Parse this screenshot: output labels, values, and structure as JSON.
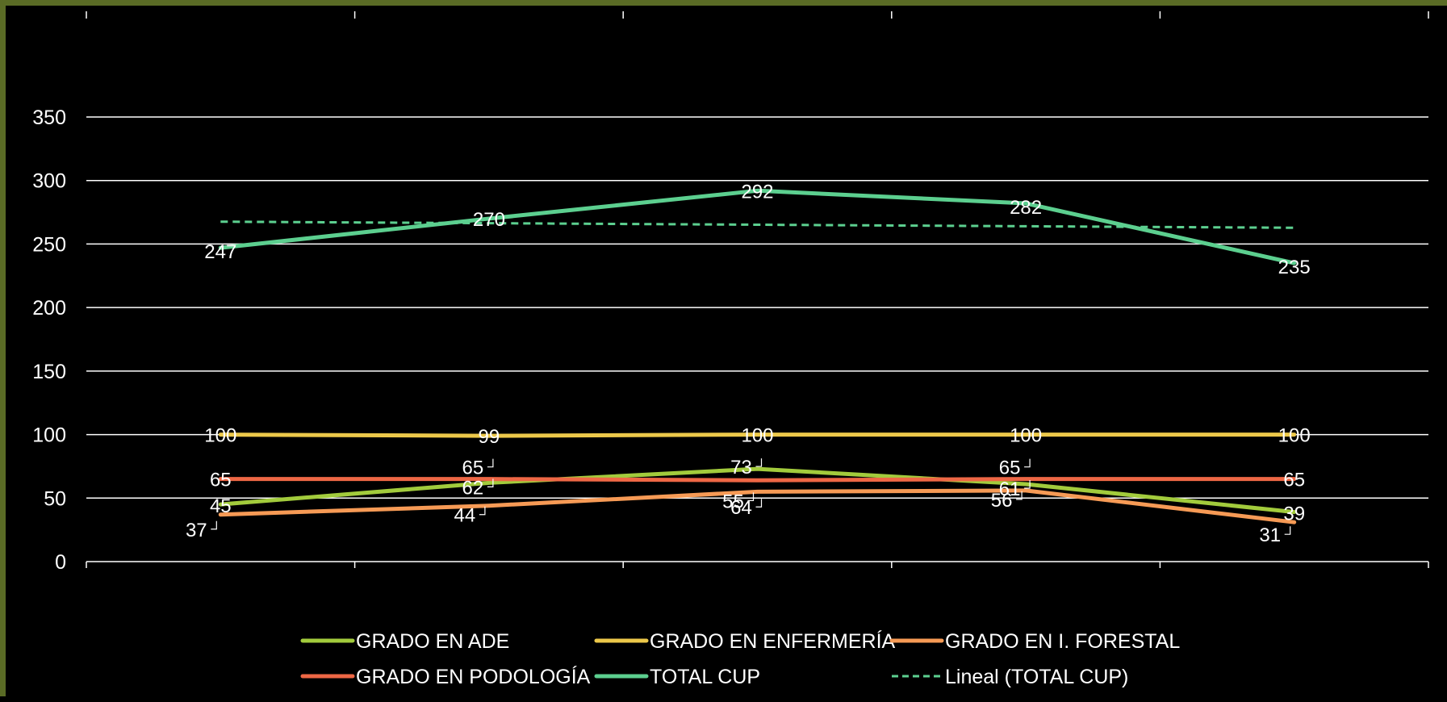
{
  "colors": {
    "background": "#000000",
    "border": "#5a6b25",
    "grid": "#ffffff",
    "text": "#ffffff"
  },
  "chart_data": {
    "type": "line",
    "title": "",
    "xlabel": "",
    "ylabel": "",
    "x": [
      1,
      2,
      3,
      4,
      5
    ],
    "ylim": [
      0,
      350
    ],
    "yticks": [
      0,
      50,
      100,
      150,
      200,
      250,
      300,
      350
    ],
    "grid": true,
    "legend_position": "bottom",
    "series": [
      {
        "name": "GRADO EN ADE",
        "color": "#a2cb3c",
        "values": [
          45,
          62,
          73,
          61,
          39
        ]
      },
      {
        "name": "GRADO EN ENFERMERÍA",
        "color": "#ecc84a",
        "values": [
          100,
          99,
          100,
          100,
          100
        ]
      },
      {
        "name": "GRADO EN I. FORESTAL",
        "color": "#f69a55",
        "values": [
          37,
          44,
          55,
          56,
          31
        ]
      },
      {
        "name": "GRADO EN PODOLOGÍA",
        "color": "#ee6745",
        "values": [
          65,
          65,
          64,
          65,
          65
        ]
      },
      {
        "name": "TOTAL CUP",
        "color": "#5ccf8f",
        "values": [
          247,
          270,
          292,
          282,
          235
        ]
      }
    ],
    "trendline": {
      "name": "Lineal (TOTAL CUP)",
      "color": "#5ccf8f",
      "of": "TOTAL CUP",
      "style": "dashed"
    }
  }
}
